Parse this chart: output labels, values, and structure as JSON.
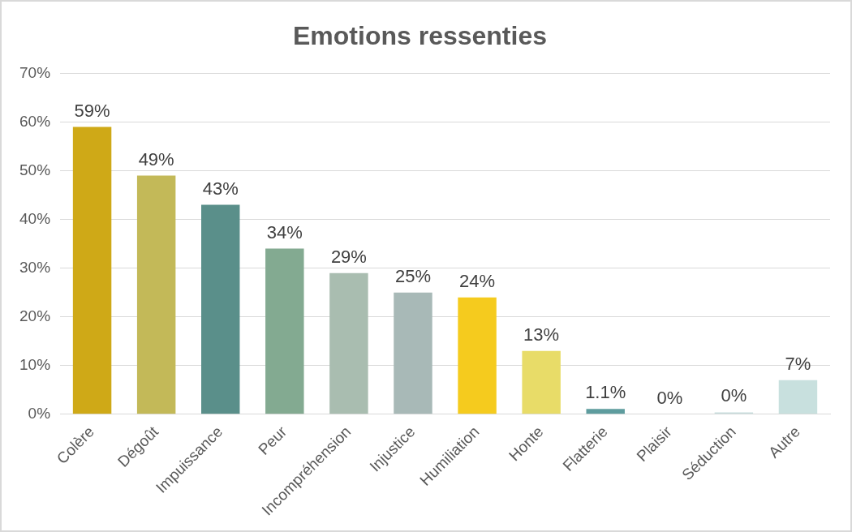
{
  "chart_data": {
    "type": "bar",
    "title": "Emotions ressenties",
    "categories": [
      "Colère",
      "Dégoût",
      "Impuissance",
      "Peur",
      "Incompréhension",
      "Injustice",
      "Humiliation",
      "Honte",
      "Flatterie",
      "Plaisir",
      "Séduction",
      "Autre"
    ],
    "values": [
      59,
      49,
      43,
      34,
      29,
      25,
      24,
      13,
      1.1,
      0,
      0.4,
      7
    ],
    "value_labels": [
      "59%",
      "49%",
      "43%",
      "34%",
      "29%",
      "25%",
      "24%",
      "13%",
      "1.1%",
      "0%",
      "0%",
      "7%"
    ],
    "colors": [
      "#cfa917",
      "#c3b958",
      "#5a8f8a",
      "#83aa91",
      "#a9bdb0",
      "#a8b9b7",
      "#f5cb1e",
      "#e8dc68",
      "#5e9c9e",
      "#9dbfbd",
      "#c9dedd",
      "#c8e0de"
    ],
    "ylim": [
      0,
      70
    ],
    "yticks": [
      {
        "value": 0,
        "label": "0%"
      },
      {
        "value": 10,
        "label": "10%"
      },
      {
        "value": 20,
        "label": "20%"
      },
      {
        "value": 30,
        "label": "30%"
      },
      {
        "value": 40,
        "label": "40%"
      },
      {
        "value": 50,
        "label": "50%"
      },
      {
        "value": 60,
        "label": "60%"
      },
      {
        "value": 70,
        "label": "70%"
      }
    ],
    "grid": "y",
    "legend": false
  }
}
